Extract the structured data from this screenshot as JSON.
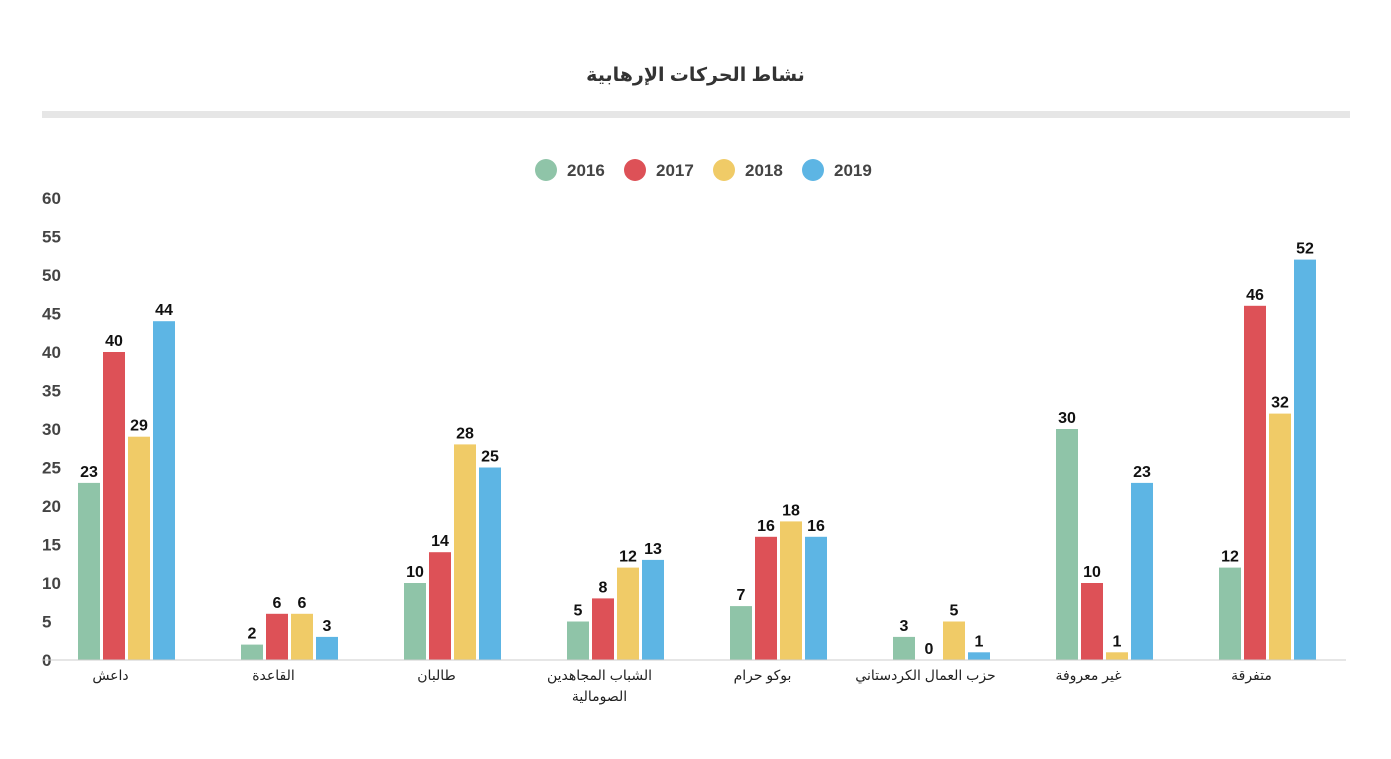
{
  "chart_data": {
    "type": "bar",
    "title": "نشاط الحركات الإرهابية",
    "xlabel": "",
    "ylabel": "",
    "ylim": [
      0,
      60
    ],
    "yticks": [
      0,
      5,
      10,
      15,
      20,
      25,
      30,
      35,
      40,
      45,
      50,
      55,
      60
    ],
    "grid": false,
    "legend_position": "top-center",
    "categories": [
      [
        "داعش"
      ],
      [
        "القاعدة"
      ],
      [
        "طالبان"
      ],
      [
        "الشباب المجاهدين",
        "الصومالية"
      ],
      [
        "بوكو حرام"
      ],
      [
        "حزب العمال الكردستاني"
      ],
      [
        "غير معروفة"
      ],
      [
        "متفرقة"
      ]
    ],
    "series": [
      {
        "name": "2016",
        "color": "#8fc4a8",
        "values": [
          23,
          2,
          10,
          5,
          7,
          3,
          30,
          12
        ]
      },
      {
        "name": "2017",
        "color": "#dd5157",
        "values": [
          40,
          6,
          14,
          8,
          16,
          0,
          10,
          46
        ]
      },
      {
        "name": "2018",
        "color": "#f0cb67",
        "values": [
          29,
          6,
          28,
          12,
          18,
          5,
          1,
          32
        ]
      },
      {
        "name": "2019",
        "color": "#5db5e4",
        "values": [
          44,
          3,
          25,
          13,
          16,
          1,
          23,
          52
        ]
      }
    ]
  }
}
